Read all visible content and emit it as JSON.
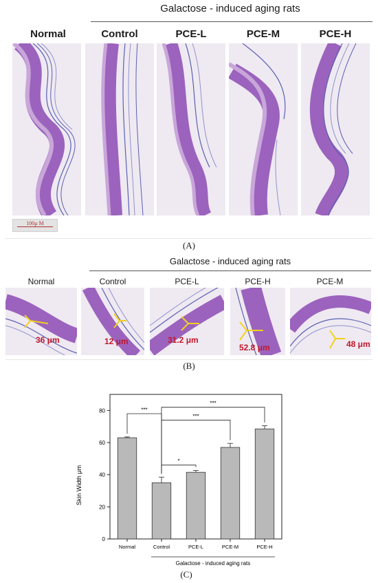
{
  "panel_a": {
    "group_title": "Galactose - induced aging rats",
    "labels": [
      "Normal",
      "Control",
      "PCE-L",
      "PCE-M",
      "PCE-H"
    ],
    "scale_bar": "100μ M",
    "letter": "(A)"
  },
  "panel_b": {
    "group_title": "Galactose - induced aging rats",
    "labels": [
      "Normal",
      "Control",
      "PCE-L",
      "PCE-H",
      "PCE-M"
    ],
    "measurements": [
      "36 μm",
      "12 μm",
      "31.2 μm",
      "52.8 μm",
      "48 μm"
    ],
    "letter": "(B)"
  },
  "panel_c": {
    "letter": "(C)",
    "group_label": "Galactose - induced aging rats"
  },
  "chart_data": {
    "type": "bar",
    "categories": [
      "Normal",
      "Control",
      "PCE-L",
      "PCE-M",
      "PCE-H"
    ],
    "values": [
      63,
      35,
      41.5,
      57,
      68.5
    ],
    "errors": [
      0.5,
      3.5,
      1.2,
      2.5,
      2.0
    ],
    "ylabel": "Skin Width μm",
    "xlabel": "",
    "ylim": [
      0,
      90
    ],
    "yticks": [
      0,
      20,
      40,
      60,
      80
    ],
    "bar_color": "#b9b9b9",
    "significance": [
      {
        "from": "Normal",
        "to": "Control",
        "label": "***"
      },
      {
        "from": "Control",
        "to": "PCE-L",
        "label": "*"
      },
      {
        "from": "Control",
        "to": "PCE-M",
        "label": "***"
      },
      {
        "from": "Control",
        "to": "PCE-H",
        "label": "***"
      }
    ]
  },
  "colors": {
    "stain_bg": "#efe9f2",
    "stain_tissue": "#9b63bd",
    "stain_light": "#c9a6d9",
    "stain_fiber": "#5a5fb0",
    "measure_red": "#c0182a",
    "measure_yellow": "#f2d21b"
  }
}
